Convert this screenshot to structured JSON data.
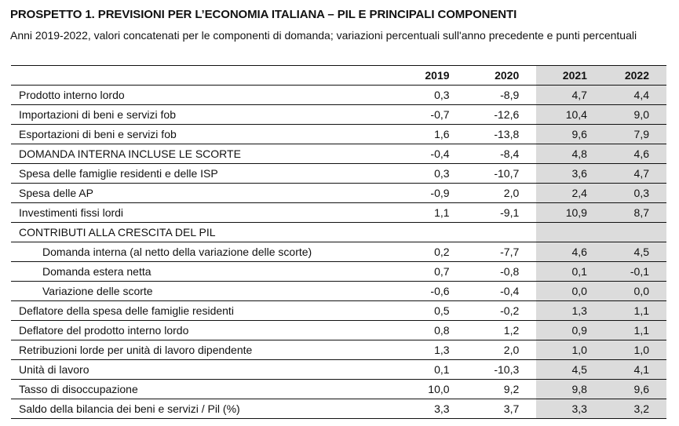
{
  "title": "PROSPETTO 1. PREVISIONI PER L’ECONOMIA ITALIANA – PIL E PRINCIPALI COMPONENTI",
  "subtitle": "Anni 2019-2022, valori concatenati per le componenti di domanda; variazioni percentuali sull'anno precedente e punti percentuali",
  "table": {
    "years": [
      "2019",
      "2020",
      "2021",
      "2022"
    ],
    "rows": [
      {
        "label": "Prodotto interno lordo",
        "values": [
          "0,3",
          "-8,9",
          "4,7",
          "4,4"
        ]
      },
      {
        "label": "Importazioni di beni e servizi fob",
        "values": [
          "-0,7",
          "-12,6",
          "10,4",
          "9,0"
        ]
      },
      {
        "label": "Esportazioni di beni e servizi fob",
        "values": [
          "1,6",
          "-13,8",
          "9,6",
          "7,9"
        ]
      },
      {
        "label": "DOMANDA INTERNA INCLUSE LE SCORTE",
        "values": [
          "-0,4",
          "-8,4",
          "4,8",
          "4,6"
        ]
      },
      {
        "label": "Spesa delle famiglie residenti e delle ISP",
        "values": [
          "0,3",
          "-10,7",
          "3,6",
          "4,7"
        ]
      },
      {
        "label": "Spesa delle AP",
        "values": [
          "-0,9",
          "2,0",
          "2,4",
          "0,3"
        ]
      },
      {
        "label": "Investimenti fissi lordi",
        "values": [
          "1,1",
          "-9,1",
          "10,9",
          "8,7"
        ]
      },
      {
        "label": "CONTRIBUTI ALLA CRESCITA DEL PIL",
        "values": [
          "",
          "",
          "",
          ""
        ]
      },
      {
        "label": "Domanda interna (al netto della variazione delle scorte)",
        "values": [
          "0,2",
          "-7,7",
          "4,6",
          "4,5"
        ]
      },
      {
        "label": "Domanda estera netta",
        "values": [
          "0,7",
          "-0,8",
          "0,1",
          "-0,1"
        ]
      },
      {
        "label": "Variazione delle scorte",
        "values": [
          "-0,6",
          "-0,4",
          "0,0",
          "0,0"
        ]
      },
      {
        "label": "Deflatore della spesa delle famiglie residenti",
        "values": [
          "0,5",
          "-0,2",
          "1,3",
          "1,1"
        ]
      },
      {
        "label": "Deflatore del prodotto interno lordo",
        "values": [
          "0,8",
          "1,2",
          "0,9",
          "1,1"
        ]
      },
      {
        "label": "Retribuzioni lorde per unità di lavoro dipendente",
        "values": [
          "1,3",
          "2,0",
          "1,0",
          "1,0"
        ]
      },
      {
        "label": "Unità di lavoro",
        "values": [
          "0,1",
          "-10,3",
          "4,5",
          "4,1"
        ]
      },
      {
        "label": "Tasso di disoccupazione",
        "values": [
          "10,0",
          "9,2",
          "9,8",
          "9,6"
        ]
      },
      {
        "label": "Saldo della bilancia dei beni e servizi / Pil (%)",
        "values": [
          "3,3",
          "3,7",
          "3,3",
          "3,2"
        ]
      }
    ]
  },
  "colors": {
    "forecast_shade": "#dcdcdc",
    "text": "#111111"
  }
}
